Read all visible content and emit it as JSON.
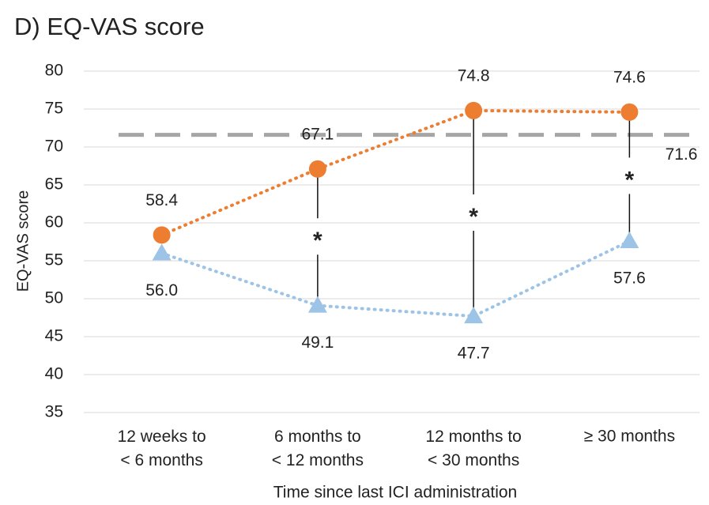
{
  "chart_data": {
    "type": "line",
    "title": "D) EQ-VAS score",
    "y_axis_label": "EQ-VAS score",
    "x_axis_label": "Time since last ICI administration",
    "categories": [
      "12 weeks to\n< 6 months",
      "6 months to\n< 12 months",
      "12 months to\n< 30 months",
      "≥ 30 months"
    ],
    "series": [
      {
        "color": "#ed7d31",
        "marker": "circle",
        "values": [
          58.4,
          67.1,
          74.8,
          74.6
        ],
        "label_position": "above"
      },
      {
        "color": "#9dc3e6",
        "marker": "triangle",
        "values": [
          56.0,
          49.1,
          47.7,
          57.6
        ],
        "value_labels": [
          "56.0",
          "49.1",
          "47.7",
          "57.6"
        ],
        "label_position": "below"
      }
    ],
    "reference_line": {
      "value": 71.6,
      "color": "#a6a6a6"
    },
    "significant": [
      false,
      true,
      true,
      true
    ],
    "significance_label": "*",
    "ylim": [
      35,
      80
    ],
    "yticks": [
      35,
      40,
      45,
      50,
      55,
      60,
      65,
      70,
      75,
      80
    ],
    "grid": true
  }
}
